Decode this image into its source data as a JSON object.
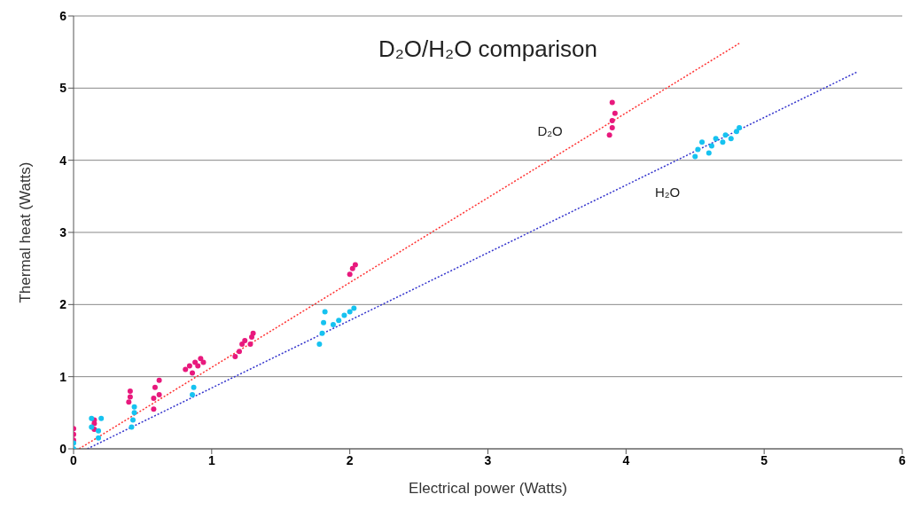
{
  "chart_data": {
    "type": "scatter",
    "title": "D₂O/H₂O comparison",
    "xlabel": "Electrical power (Watts)",
    "ylabel": "Thermal heat (Watts)",
    "xlim": [
      0,
      6
    ],
    "xticks": [
      0,
      1,
      2,
      3,
      4,
      5,
      6
    ],
    "ylim": [
      0,
      6
    ],
    "yticks": [
      0,
      1,
      2,
      3,
      4,
      5,
      6
    ],
    "grid": "y",
    "marker": "circle",
    "annotations": [
      "D₂O",
      "H₂O"
    ],
    "series": [
      {
        "type": "line",
        "color": "#ff3333",
        "line_style": "dotted",
        "marker": "none",
        "x": [
          0.04,
          4.82
        ],
        "values": [
          0,
          5.62
        ]
      },
      {
        "type": "line",
        "color": "#3333cc",
        "line_style": "dotted",
        "marker": "none",
        "x": [
          0.1,
          5.68
        ],
        "values": [
          0,
          5.23
        ]
      },
      {
        "color": "#e8197d",
        "x": [
          0,
          0,
          0,
          0.15,
          0.15,
          0.15,
          0.4,
          0.41,
          0.41,
          0.58,
          0.58,
          0.59,
          0.62,
          0.62,
          0.81,
          0.84,
          0.86,
          0.88,
          0.9,
          0.92,
          0.94,
          1.17,
          1.2,
          1.22,
          1.24,
          1.28,
          1.29,
          1.3,
          2.0,
          2.02,
          2.04,
          3.88,
          3.9,
          3.9,
          3.92,
          3.9
        ],
        "values": [
          0.12,
          0.2,
          0.28,
          0.27,
          0.35,
          0.4,
          0.65,
          0.72,
          0.8,
          0.55,
          0.7,
          0.85,
          0.75,
          0.95,
          1.1,
          1.15,
          1.05,
          1.2,
          1.15,
          1.25,
          1.2,
          1.28,
          1.35,
          1.45,
          1.5,
          1.45,
          1.55,
          1.6,
          2.42,
          2.5,
          2.55,
          4.35,
          4.45,
          4.55,
          4.65,
          4.8
        ]
      },
      {
        "color": "#16c2f0",
        "x": [
          0,
          0,
          0.13,
          0.13,
          0.18,
          0.18,
          0.2,
          0.42,
          0.43,
          0.44,
          0.44,
          0.86,
          0.87,
          1.78,
          1.8,
          1.81,
          1.82,
          1.88,
          1.92,
          1.96,
          2.0,
          2.03,
          4.5,
          4.52,
          4.55,
          4.6,
          4.62,
          4.65,
          4.7,
          4.72,
          4.76,
          4.8,
          4.82
        ],
        "values": [
          0,
          0.08,
          0.3,
          0.42,
          0.15,
          0.25,
          0.42,
          0.3,
          0.4,
          0.5,
          0.58,
          0.75,
          0.85,
          1.45,
          1.6,
          1.75,
          1.9,
          1.72,
          1.78,
          1.85,
          1.9,
          1.95,
          4.05,
          4.15,
          4.25,
          4.1,
          4.2,
          4.3,
          4.25,
          4.35,
          4.3,
          4.4,
          4.45
        ]
      }
    ]
  }
}
